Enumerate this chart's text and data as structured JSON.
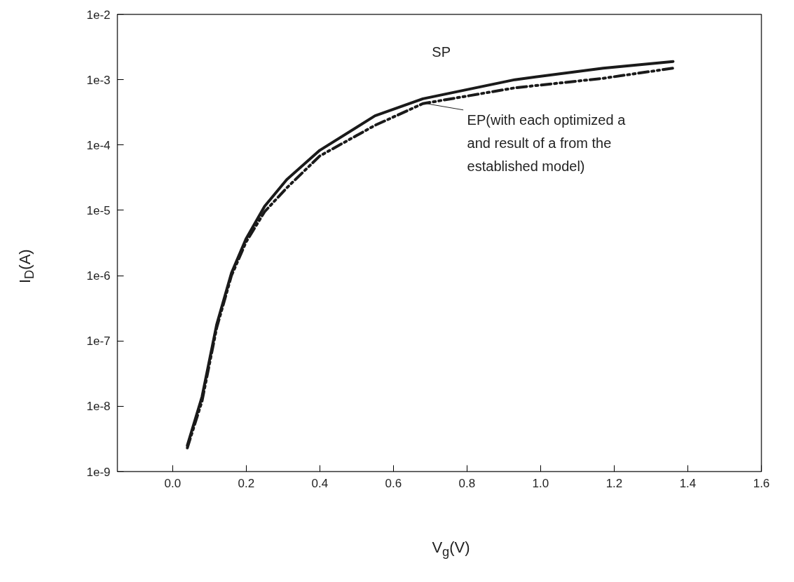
{
  "chart_data": {
    "type": "line",
    "xlabel": "V$_{g}$(V)",
    "ylabel": "I$_{D}$(A)",
    "x": [
      0.04,
      0.08,
      0.12,
      0.16,
      0.2,
      0.25,
      0.31,
      0.4,
      0.55,
      0.68,
      0.93,
      1.17,
      1.36
    ],
    "series": [
      {
        "color": "#1a1a1a",
        "line_style": "solid",
        "values": [
          2.5e-09,
          1.4e-08,
          1.8e-07,
          1.1e-06,
          3.7e-06,
          1.15e-05,
          2.95e-05,
          8.3e-05,
          0.00028,
          0.00051,
          0.001,
          0.0015,
          0.0019
        ]
      },
      {
        "color": "#1a1a1a",
        "line_style": "dashed",
        "values": [
          2.3e-09,
          1.2e-08,
          1.6e-07,
          1e-06,
          3.3e-06,
          9.5e-06,
          2.2e-05,
          6.8e-05,
          0.0002,
          0.00043,
          0.00075,
          0.00105,
          0.0015
        ]
      }
    ],
    "annotations": [
      "SP",
      {
        "text": "EP(with each optimized a\nand result of a from the\nestablished model)",
        "x": 0.69,
        "y": 0.00043
      }
    ],
    "log": "y",
    "grid": false,
    "marker": "none",
    "xlim": [
      -0.15,
      1.6
    ],
    "xticks": [
      {
        "value": 0,
        "label": "0.0"
      },
      {
        "value": 0.2,
        "label": "0.2"
      },
      {
        "value": 0.4,
        "label": "0.4"
      },
      {
        "value": 0.6,
        "label": "0.6"
      },
      {
        "value": 0.8,
        "label": "0.8"
      },
      {
        "value": 1.0,
        "label": "1.0"
      },
      {
        "value": 1.2,
        "label": "1.2"
      },
      {
        "value": 1.4,
        "label": "1.4"
      },
      {
        "value": 1.6,
        "label": "1.6"
      }
    ],
    "ylim": [
      1e-09,
      0.01
    ],
    "yticks": [
      {
        "value": 1e-09,
        "label": "1e-9"
      },
      {
        "value": 1e-08,
        "label": "1e-8"
      },
      {
        "value": 1e-07,
        "label": "1e-7"
      },
      {
        "value": 1e-06,
        "label": "1e-6"
      },
      {
        "value": 1e-05,
        "label": "1e-5"
      },
      {
        "value": 0.0001,
        "label": "1e-4"
      },
      {
        "value": 0.001,
        "label": "1e-3"
      },
      {
        "value": 0.01,
        "label": "1e-2"
      }
    ]
  }
}
